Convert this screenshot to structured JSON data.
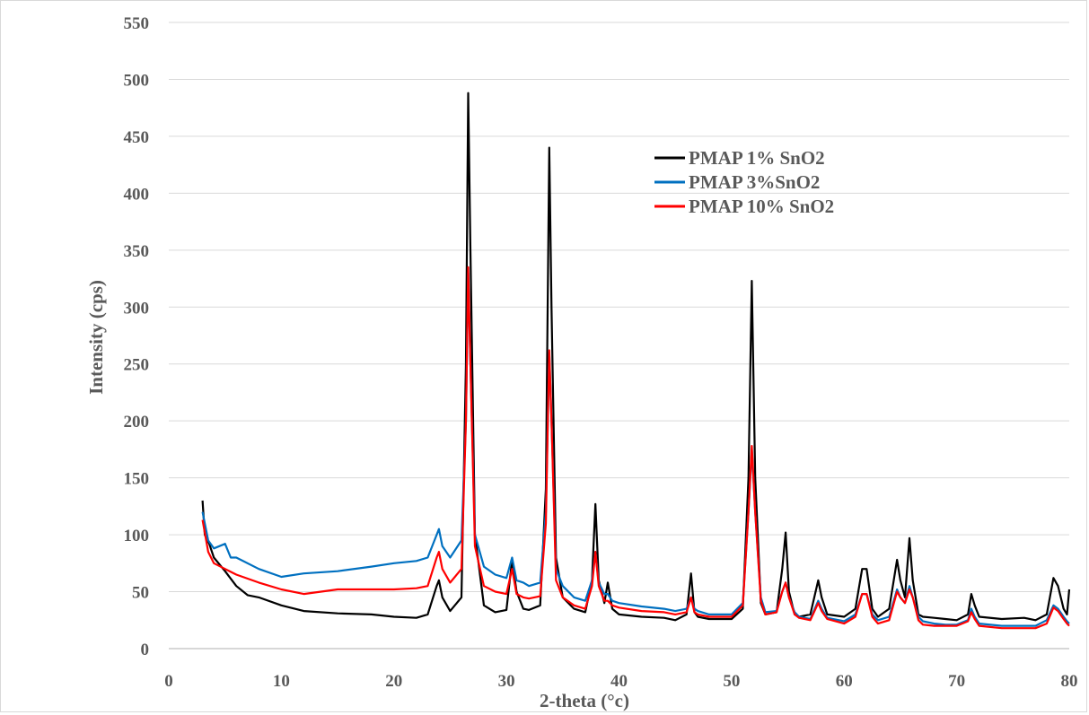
{
  "chart_data": {
    "type": "line",
    "title": "",
    "xlabel": "2-theta (°c)",
    "ylabel": "Intensity  (cps)",
    "xlim": [
      0,
      80
    ],
    "ylim": [
      0,
      550
    ],
    "x_ticks": [
      0,
      10,
      20,
      30,
      40,
      50,
      60,
      70,
      80
    ],
    "y_ticks": [
      0,
      50,
      100,
      150,
      200,
      250,
      300,
      350,
      400,
      450,
      500,
      550
    ],
    "grid": "horizontal",
    "legend_position": "top-right",
    "series": [
      {
        "name": "PMAP 1% SnO2",
        "color": "#000000",
        "points": [
          [
            3,
            130
          ],
          [
            3.2,
            100
          ],
          [
            3.6,
            92
          ],
          [
            4,
            80
          ],
          [
            5,
            68
          ],
          [
            6,
            55
          ],
          [
            7,
            47
          ],
          [
            8,
            45
          ],
          [
            10,
            38
          ],
          [
            12,
            33
          ],
          [
            15,
            31
          ],
          [
            18,
            30
          ],
          [
            20,
            28
          ],
          [
            22,
            27
          ],
          [
            23,
            30
          ],
          [
            23.8,
            55
          ],
          [
            24,
            60
          ],
          [
            24.3,
            45
          ],
          [
            25,
            33
          ],
          [
            26,
            45
          ],
          [
            26.4,
            250
          ],
          [
            26.6,
            488
          ],
          [
            26.8,
            350
          ],
          [
            27.2,
            100
          ],
          [
            28,
            38
          ],
          [
            29,
            32
          ],
          [
            30,
            34
          ],
          [
            30.5,
            78
          ],
          [
            30.9,
            50
          ],
          [
            31.5,
            35
          ],
          [
            32,
            34
          ],
          [
            33,
            38
          ],
          [
            33.5,
            140
          ],
          [
            33.8,
            440
          ],
          [
            34,
            300
          ],
          [
            34.4,
            80
          ],
          [
            35,
            45
          ],
          [
            36,
            35
          ],
          [
            37,
            32
          ],
          [
            37.6,
            60
          ],
          [
            37.9,
            127
          ],
          [
            38.2,
            60
          ],
          [
            38.7,
            40
          ],
          [
            39,
            58
          ],
          [
            39.4,
            35
          ],
          [
            40,
            30
          ],
          [
            42,
            28
          ],
          [
            44,
            27
          ],
          [
            45,
            25
          ],
          [
            46,
            30
          ],
          [
            46.4,
            66
          ],
          [
            46.7,
            32
          ],
          [
            47,
            28
          ],
          [
            48,
            26
          ],
          [
            50,
            26
          ],
          [
            51,
            35
          ],
          [
            51.5,
            150
          ],
          [
            51.8,
            323
          ],
          [
            52.1,
            150
          ],
          [
            52.6,
            40
          ],
          [
            53,
            30
          ],
          [
            54,
            32
          ],
          [
            54.5,
            70
          ],
          [
            54.8,
            102
          ],
          [
            55.1,
            50
          ],
          [
            55.6,
            30
          ],
          [
            56,
            28
          ],
          [
            57,
            30
          ],
          [
            57.7,
            60
          ],
          [
            58,
            45
          ],
          [
            58.5,
            30
          ],
          [
            60,
            28
          ],
          [
            61,
            35
          ],
          [
            61.6,
            70
          ],
          [
            62,
            70
          ],
          [
            62.5,
            35
          ],
          [
            63,
            28
          ],
          [
            64,
            35
          ],
          [
            64.7,
            78
          ],
          [
            65,
            60
          ],
          [
            65.4,
            45
          ],
          [
            65.8,
            97
          ],
          [
            66.1,
            60
          ],
          [
            66.6,
            30
          ],
          [
            67,
            28
          ],
          [
            68,
            27
          ],
          [
            69,
            26
          ],
          [
            70,
            25
          ],
          [
            71,
            30
          ],
          [
            71.3,
            48
          ],
          [
            71.6,
            38
          ],
          [
            72,
            28
          ],
          [
            74,
            26
          ],
          [
            76,
            27
          ],
          [
            77,
            25
          ],
          [
            78,
            30
          ],
          [
            78.6,
            62
          ],
          [
            79,
            55
          ],
          [
            79.5,
            35
          ],
          [
            79.8,
            30
          ],
          [
            80,
            52
          ]
        ]
      },
      {
        "name": "PMAP 3%SnO2",
        "color": "#0070c0",
        "points": [
          [
            3,
            120
          ],
          [
            3.5,
            95
          ],
          [
            4,
            88
          ],
          [
            5,
            92
          ],
          [
            5.5,
            80
          ],
          [
            6,
            80
          ],
          [
            8,
            70
          ],
          [
            10,
            63
          ],
          [
            12,
            66
          ],
          [
            15,
            68
          ],
          [
            18,
            72
          ],
          [
            20,
            75
          ],
          [
            22,
            77
          ],
          [
            23,
            80
          ],
          [
            23.8,
            100
          ],
          [
            24,
            105
          ],
          [
            24.3,
            90
          ],
          [
            25,
            80
          ],
          [
            26,
            95
          ],
          [
            26.4,
            200
          ],
          [
            26.6,
            330
          ],
          [
            26.8,
            250
          ],
          [
            27.2,
            100
          ],
          [
            28,
            72
          ],
          [
            29,
            65
          ],
          [
            30,
            62
          ],
          [
            30.5,
            80
          ],
          [
            30.9,
            60
          ],
          [
            31.5,
            58
          ],
          [
            32,
            55
          ],
          [
            33,
            58
          ],
          [
            33.5,
            120
          ],
          [
            33.8,
            260
          ],
          [
            34,
            200
          ],
          [
            34.4,
            70
          ],
          [
            35,
            55
          ],
          [
            36,
            45
          ],
          [
            37,
            42
          ],
          [
            37.6,
            60
          ],
          [
            37.9,
            85
          ],
          [
            38.2,
            58
          ],
          [
            38.7,
            48
          ],
          [
            39,
            48
          ],
          [
            39.4,
            42
          ],
          [
            40,
            40
          ],
          [
            42,
            37
          ],
          [
            44,
            35
          ],
          [
            45,
            33
          ],
          [
            46,
            35
          ],
          [
            46.4,
            45
          ],
          [
            46.7,
            35
          ],
          [
            47,
            33
          ],
          [
            48,
            30
          ],
          [
            50,
            30
          ],
          [
            51,
            40
          ],
          [
            51.5,
            120
          ],
          [
            51.8,
            175
          ],
          [
            52.1,
            120
          ],
          [
            52.6,
            45
          ],
          [
            53,
            32
          ],
          [
            54,
            33
          ],
          [
            54.5,
            50
          ],
          [
            54.8,
            58
          ],
          [
            55.1,
            45
          ],
          [
            55.6,
            32
          ],
          [
            56,
            28
          ],
          [
            57,
            26
          ],
          [
            57.7,
            42
          ],
          [
            58,
            35
          ],
          [
            58.5,
            27
          ],
          [
            60,
            24
          ],
          [
            61,
            30
          ],
          [
            61.6,
            48
          ],
          [
            62,
            48
          ],
          [
            62.5,
            30
          ],
          [
            63,
            25
          ],
          [
            64,
            28
          ],
          [
            64.7,
            52
          ],
          [
            65,
            45
          ],
          [
            65.4,
            40
          ],
          [
            65.8,
            55
          ],
          [
            66.1,
            45
          ],
          [
            66.6,
            28
          ],
          [
            67,
            24
          ],
          [
            68,
            22
          ],
          [
            69,
            21
          ],
          [
            70,
            21
          ],
          [
            71,
            25
          ],
          [
            71.3,
            35
          ],
          [
            71.6,
            28
          ],
          [
            72,
            22
          ],
          [
            74,
            20
          ],
          [
            76,
            20
          ],
          [
            77,
            20
          ],
          [
            78,
            25
          ],
          [
            78.6,
            38
          ],
          [
            79,
            35
          ],
          [
            79.5,
            28
          ],
          [
            79.8,
            24
          ],
          [
            80,
            22
          ]
        ]
      },
      {
        "name": "PMAP 10% SnO2",
        "color": "#ff0000",
        "points": [
          [
            3,
            113
          ],
          [
            3.5,
            85
          ],
          [
            4,
            75
          ],
          [
            5,
            70
          ],
          [
            6,
            65
          ],
          [
            8,
            58
          ],
          [
            10,
            52
          ],
          [
            12,
            48
          ],
          [
            15,
            52
          ],
          [
            18,
            52
          ],
          [
            20,
            52
          ],
          [
            22,
            53
          ],
          [
            23,
            55
          ],
          [
            23.8,
            80
          ],
          [
            24,
            85
          ],
          [
            24.3,
            70
          ],
          [
            25,
            58
          ],
          [
            26,
            70
          ],
          [
            26.4,
            200
          ],
          [
            26.6,
            335
          ],
          [
            26.8,
            250
          ],
          [
            27.2,
            90
          ],
          [
            28,
            55
          ],
          [
            29,
            50
          ],
          [
            30,
            48
          ],
          [
            30.5,
            70
          ],
          [
            30.9,
            48
          ],
          [
            31.5,
            45
          ],
          [
            32,
            44
          ],
          [
            33,
            46
          ],
          [
            33.5,
            110
          ],
          [
            33.8,
            262
          ],
          [
            34,
            200
          ],
          [
            34.4,
            60
          ],
          [
            35,
            45
          ],
          [
            36,
            38
          ],
          [
            37,
            35
          ],
          [
            37.6,
            55
          ],
          [
            37.9,
            85
          ],
          [
            38.2,
            55
          ],
          [
            38.7,
            42
          ],
          [
            39,
            42
          ],
          [
            39.4,
            38
          ],
          [
            40,
            36
          ],
          [
            42,
            33
          ],
          [
            44,
            32
          ],
          [
            45,
            30
          ],
          [
            46,
            32
          ],
          [
            46.4,
            45
          ],
          [
            46.7,
            32
          ],
          [
            47,
            30
          ],
          [
            48,
            28
          ],
          [
            50,
            28
          ],
          [
            51,
            38
          ],
          [
            51.5,
            120
          ],
          [
            51.8,
            178
          ],
          [
            52.1,
            120
          ],
          [
            52.6,
            42
          ],
          [
            53,
            30
          ],
          [
            54,
            32
          ],
          [
            54.5,
            50
          ],
          [
            54.8,
            58
          ],
          [
            55.1,
            45
          ],
          [
            55.6,
            30
          ],
          [
            56,
            27
          ],
          [
            57,
            25
          ],
          [
            57.7,
            40
          ],
          [
            58,
            33
          ],
          [
            58.5,
            26
          ],
          [
            60,
            22
          ],
          [
            61,
            28
          ],
          [
            61.6,
            48
          ],
          [
            62,
            48
          ],
          [
            62.5,
            28
          ],
          [
            63,
            22
          ],
          [
            64,
            25
          ],
          [
            64.7,
            50
          ],
          [
            65,
            45
          ],
          [
            65.4,
            40
          ],
          [
            65.8,
            52
          ],
          [
            66.1,
            45
          ],
          [
            66.6,
            25
          ],
          [
            67,
            21
          ],
          [
            68,
            20
          ],
          [
            69,
            20
          ],
          [
            70,
            20
          ],
          [
            71,
            24
          ],
          [
            71.3,
            32
          ],
          [
            71.6,
            26
          ],
          [
            72,
            20
          ],
          [
            74,
            18
          ],
          [
            76,
            18
          ],
          [
            77,
            18
          ],
          [
            78,
            22
          ],
          [
            78.6,
            36
          ],
          [
            79,
            33
          ],
          [
            79.5,
            26
          ],
          [
            79.8,
            22
          ],
          [
            80,
            20
          ]
        ]
      }
    ]
  }
}
